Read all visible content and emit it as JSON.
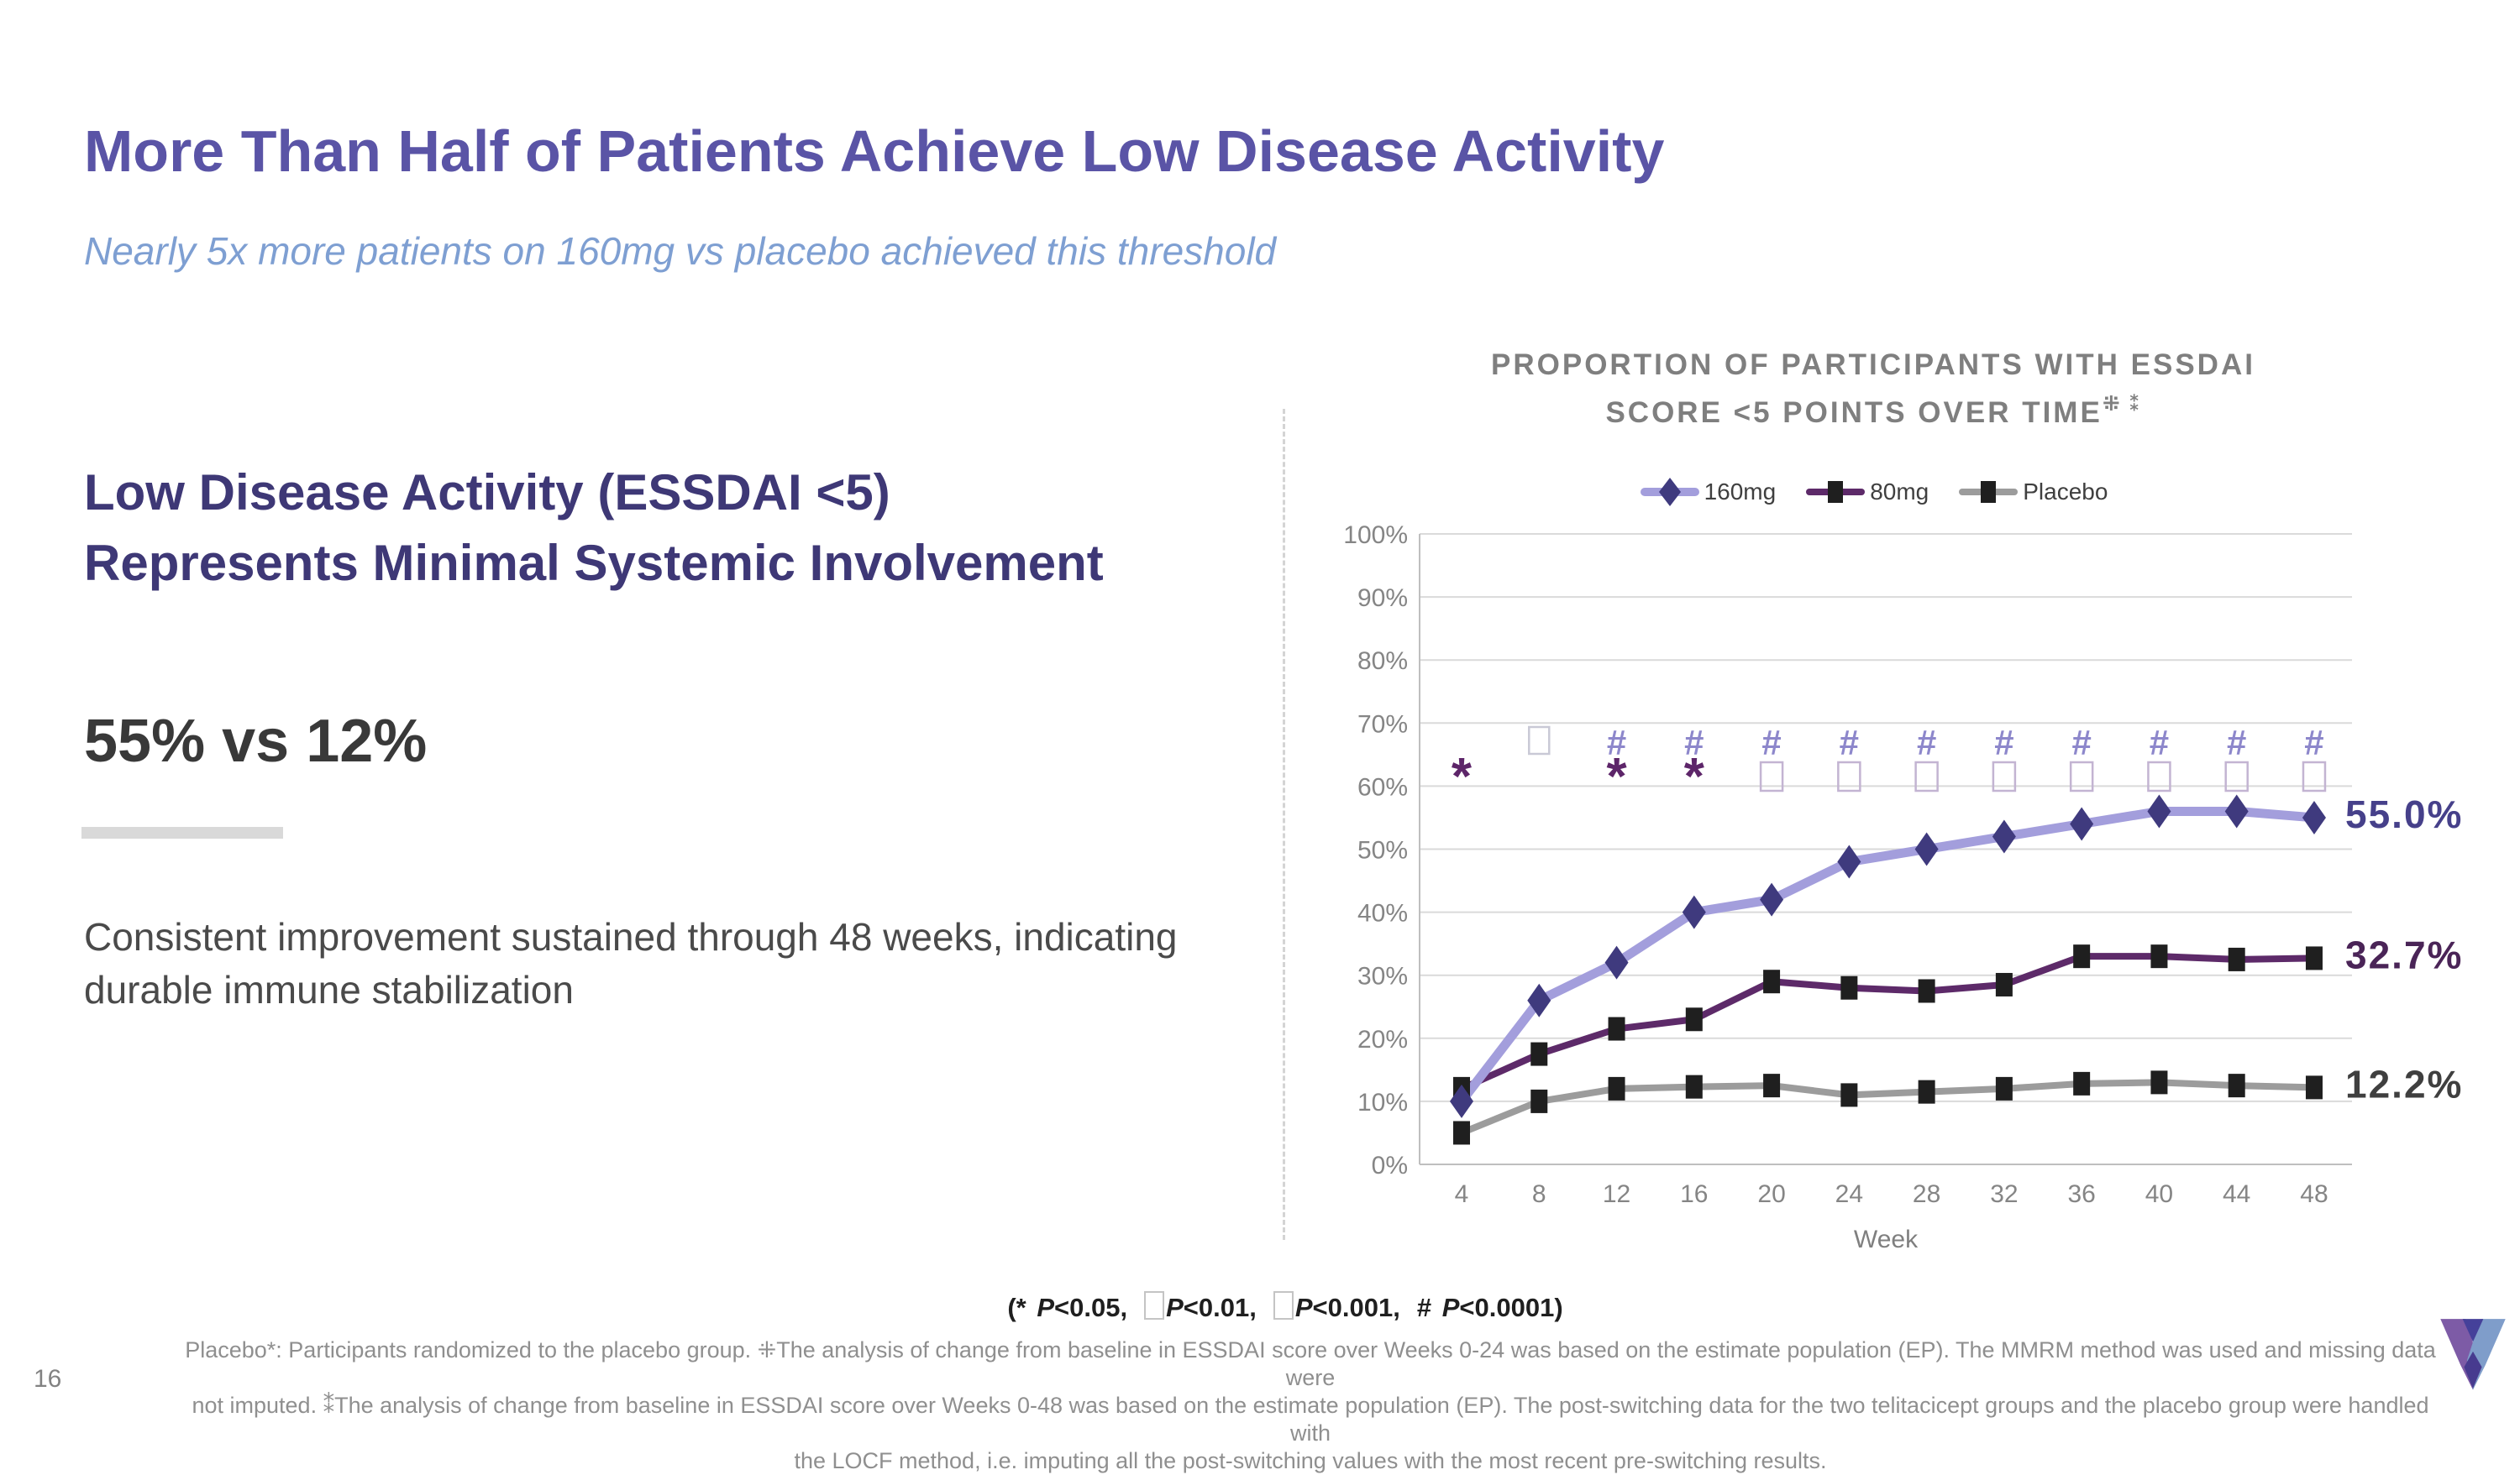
{
  "slide": {
    "title": "More Than Half of Patients Achieve Low Disease Activity",
    "subtitle": "Nearly 5x more patients on 160mg vs placebo achieved this threshold",
    "page_number": "16"
  },
  "left_panel": {
    "heading": "Low Disease Activity (ESSDAI <5) Represents Minimal Systemic Involvement",
    "stat": "55% vs 12%",
    "body": "Consistent improvement sustained through 48 weeks, indicating durable immune stabilization"
  },
  "chart_data": {
    "type": "line",
    "title": "PROPORTION OF PARTICIPANTS WITH ESSDAI SCORE <5 POINTS OVER TIME",
    "title_line1": "PROPORTION OF PARTICIPANTS WITH ESSDAI",
    "title_line2": "SCORE <5 POINTS OVER TIME",
    "title_superscripts": "⁜ ⁑",
    "xlabel": "Week",
    "categories": [
      4,
      8,
      12,
      16,
      20,
      24,
      28,
      32,
      36,
      40,
      44,
      48
    ],
    "ylim": [
      0,
      100
    ],
    "ytick_step": 10,
    "grid": true,
    "legend_position": "top",
    "series": [
      {
        "name": "160mg",
        "line_color": "#a39edc",
        "marker": "diamond",
        "marker_color": "#3f3a7e",
        "values": [
          10,
          26,
          32,
          40,
          42,
          48,
          50,
          52,
          54,
          56,
          56,
          55
        ],
        "end_label": "55.0%",
        "end_label_color": "#46408a"
      },
      {
        "name": "80mg",
        "line_color": "#5d2a69",
        "marker": "square",
        "marker_color": "#1f1f1f",
        "values": [
          12,
          17.5,
          21.5,
          23,
          29,
          28,
          27.5,
          28.5,
          33,
          33,
          32.5,
          32.7
        ],
        "end_label": "32.7%",
        "end_label_color": "#4a2457"
      },
      {
        "name": "Placebo",
        "line_color": "#9c9c9c",
        "marker": "square",
        "marker_color": "#1f1f1f",
        "values": [
          5,
          10,
          12,
          12.3,
          12.5,
          11,
          11.5,
          12,
          12.8,
          13,
          12.5,
          12.2
        ],
        "end_label": "12.2%",
        "end_label_color": "#3f3f3f"
      }
    ],
    "significance_markers": {
      "hash_row": {
        "color": "#8d87cb",
        "box_color": "#c9c9d6",
        "cells": [
          "",
          "box",
          "#",
          "#",
          "#",
          "#",
          "#",
          "#",
          "#",
          "#",
          "#",
          "#"
        ]
      },
      "star_row": {
        "color": "#5d2569",
        "box_color": "#c3b4d2",
        "cells": [
          "*",
          "",
          "*",
          "*",
          "box",
          "box",
          "box",
          "box",
          "box",
          "box",
          "box",
          "box"
        ]
      }
    }
  },
  "p_key": {
    "open": "(",
    "close": ")",
    "items": [
      {
        "marker": "*",
        "p": "P",
        "rest": "<0.05,"
      },
      {
        "marker": "box",
        "p": "P",
        "rest": "<0.01,"
      },
      {
        "marker": "box",
        "p": "P",
        "rest": "<0.001,"
      },
      {
        "marker": "#",
        "p": "P",
        "rest": "<0.0001"
      }
    ]
  },
  "footnote": {
    "line1": "Placebo*: Participants randomized to the placebo group. ⁜The analysis of change from baseline in ESSDAI score over Weeks 0-24 was based on the estimate population (EP). The MMRM method was used and missing data were",
    "line2": "not imputed. ⁑The analysis of change from baseline in ESSDAI score over Weeks 0-48 was based on the estimate population (EP). The post-switching data for the two telitacicept groups and the placebo group were handled with",
    "line3": "the LOCF method, i.e. imputing all the post-switching values with the most recent pre-switching results."
  }
}
